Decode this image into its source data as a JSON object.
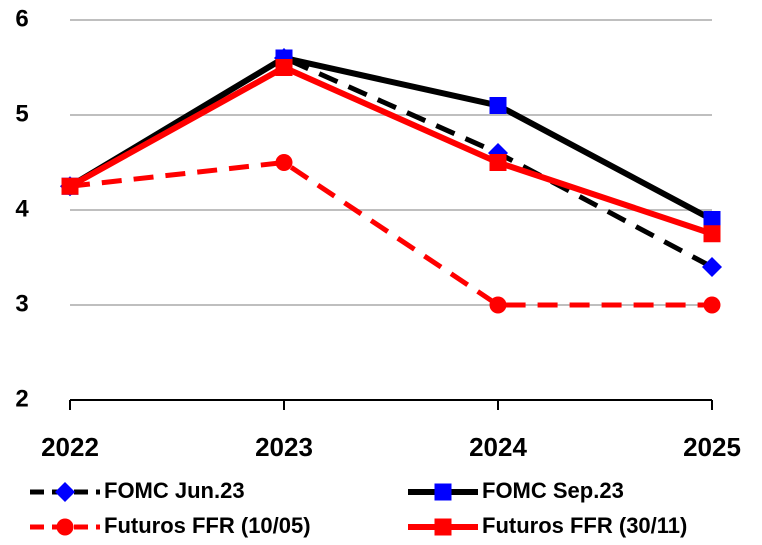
{
  "chart_data": {
    "type": "line",
    "categories": [
      "2022",
      "2023",
      "2024",
      "2025"
    ],
    "series": [
      {
        "name": "FOMC Jun.23",
        "color": "#000000",
        "marker_color": "#0000ff",
        "dash": true,
        "marker": "diamond",
        "values": [
          4.25,
          5.6,
          4.6,
          3.4
        ]
      },
      {
        "name": "FOMC Sep.23",
        "color": "#000000",
        "marker_color": "#0000ff",
        "dash": false,
        "marker": "square",
        "values": [
          4.25,
          5.6,
          5.1,
          3.9
        ]
      },
      {
        "name": "Futuros FFR (10/05)",
        "color": "#ff0000",
        "marker_color": "#ff0000",
        "dash": true,
        "marker": "circle",
        "values": [
          4.25,
          4.5,
          3.0,
          3.0
        ]
      },
      {
        "name": "Futuros FFR (30/11)",
        "color": "#ff0000",
        "marker_color": "#ff0000",
        "dash": false,
        "marker": "square",
        "values": [
          4.25,
          5.5,
          4.5,
          3.75
        ]
      }
    ],
    "ylim": [
      2,
      6
    ],
    "yticks": [
      2,
      3,
      4,
      5,
      6
    ],
    "grid": true,
    "legend": "bottom"
  }
}
